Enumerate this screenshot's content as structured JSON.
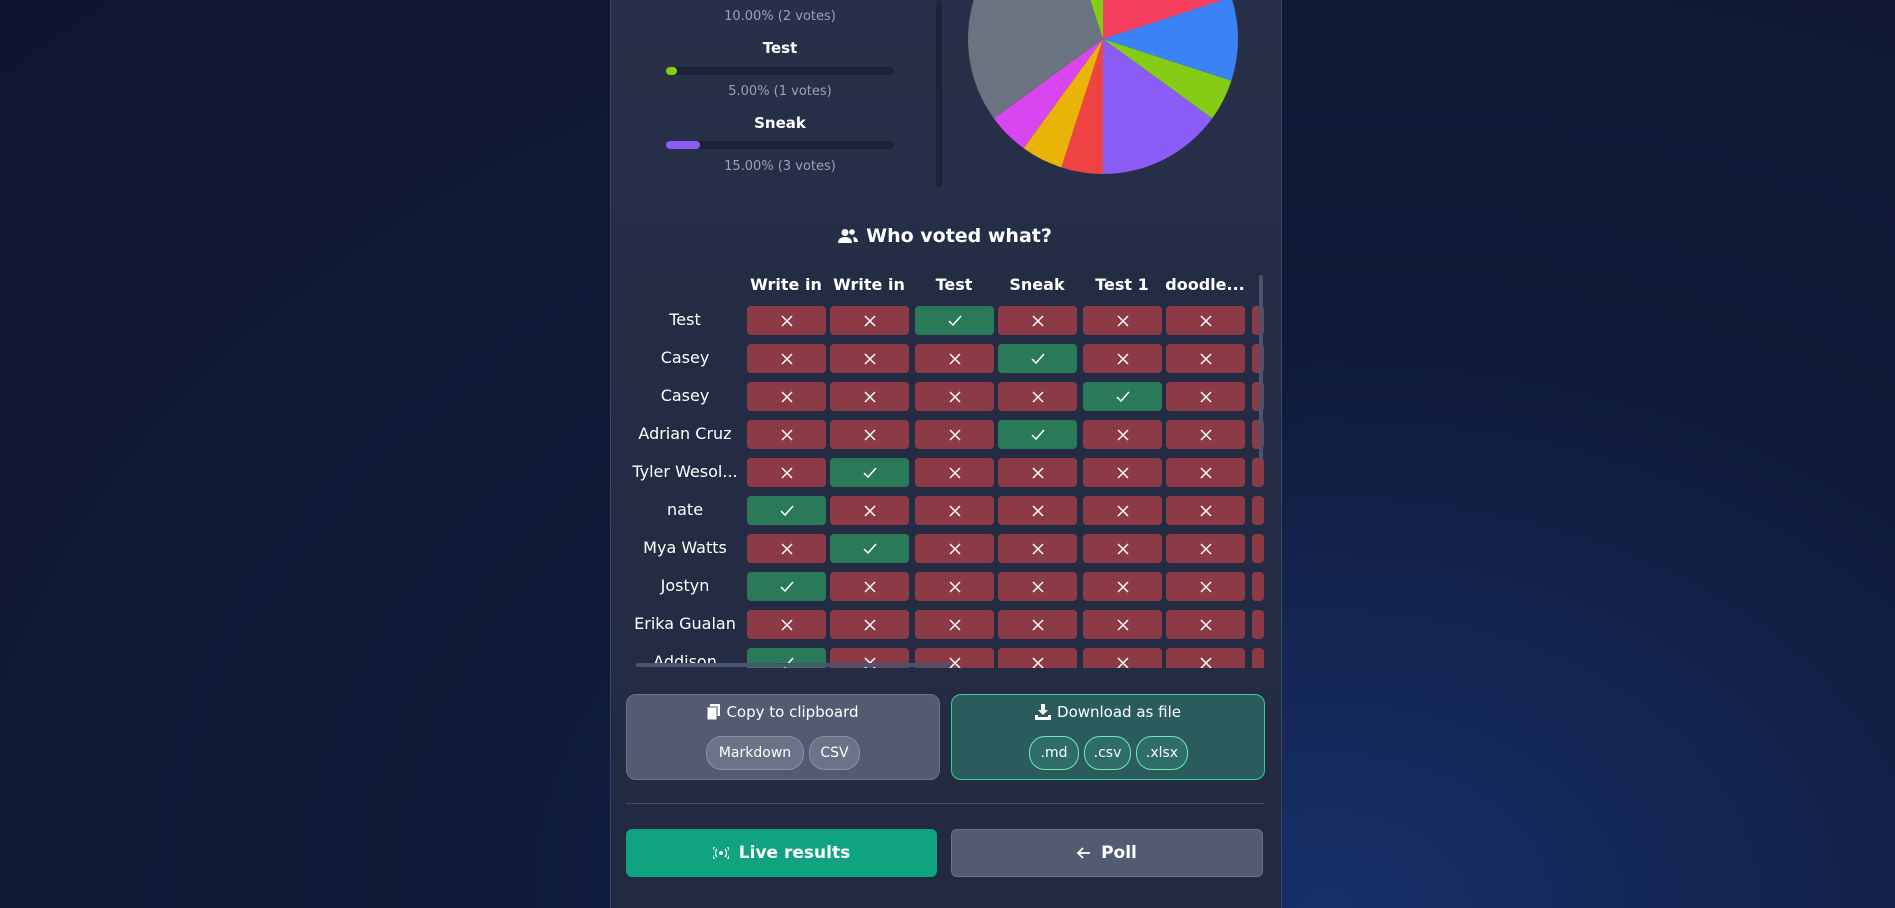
{
  "results": [
    {
      "stat_label": "10.00% (2 votes)",
      "percent": 10
    },
    {
      "label": "Test",
      "percent": 5,
      "stat_label": "5.00% (1 votes)",
      "color": "#84cc16"
    },
    {
      "label": "Sneak",
      "percent": 15,
      "stat_label": "15.00% (3 votes)",
      "color": "#8b5cf6"
    }
  ],
  "pie": {
    "type": "pie",
    "values": [
      20,
      10,
      5,
      15,
      5,
      5,
      5,
      30,
      5
    ],
    "colors": [
      "#f43f5e",
      "#3b82f6",
      "#84cc16",
      "#8b5cf6",
      "#ef4444",
      "#eab308",
      "#d946ef",
      "#6b7280",
      "#84cc16"
    ]
  },
  "votes": {
    "title": "Who voted what?",
    "headers": [
      "Write in",
      "Write in",
      "Test",
      "Sneak",
      "Test 1",
      "doodle..."
    ],
    "rows": [
      {
        "name": "Test",
        "cells": [
          false,
          false,
          true,
          false,
          false,
          false
        ]
      },
      {
        "name": "Casey",
        "cells": [
          false,
          false,
          false,
          true,
          false,
          false
        ]
      },
      {
        "name": "Casey",
        "cells": [
          false,
          false,
          false,
          false,
          true,
          false
        ]
      },
      {
        "name": "Adrian Cruz",
        "cells": [
          false,
          false,
          false,
          true,
          false,
          false
        ]
      },
      {
        "name": "Tyler Wesol...",
        "cells": [
          false,
          true,
          false,
          false,
          false,
          false
        ]
      },
      {
        "name": "nate",
        "cells": [
          true,
          false,
          false,
          false,
          false,
          false
        ]
      },
      {
        "name": "Mya Watts",
        "cells": [
          false,
          true,
          false,
          false,
          false,
          false
        ]
      },
      {
        "name": "Jostyn",
        "cells": [
          true,
          false,
          false,
          false,
          false,
          false
        ]
      },
      {
        "name": "Erika Gualan",
        "cells": [
          false,
          false,
          false,
          false,
          false,
          false
        ]
      },
      {
        "name": "Addison",
        "cells": [
          true,
          false,
          false,
          false,
          false,
          false
        ]
      }
    ]
  },
  "export": {
    "copy": {
      "title": "Copy to clipboard",
      "formats": [
        "Markdown",
        "CSV"
      ]
    },
    "download": {
      "title": "Download as file",
      "formats": [
        ".md",
        ".csv",
        ".xlsx"
      ]
    }
  },
  "actions": {
    "live": "Live results",
    "poll": "Poll"
  }
}
